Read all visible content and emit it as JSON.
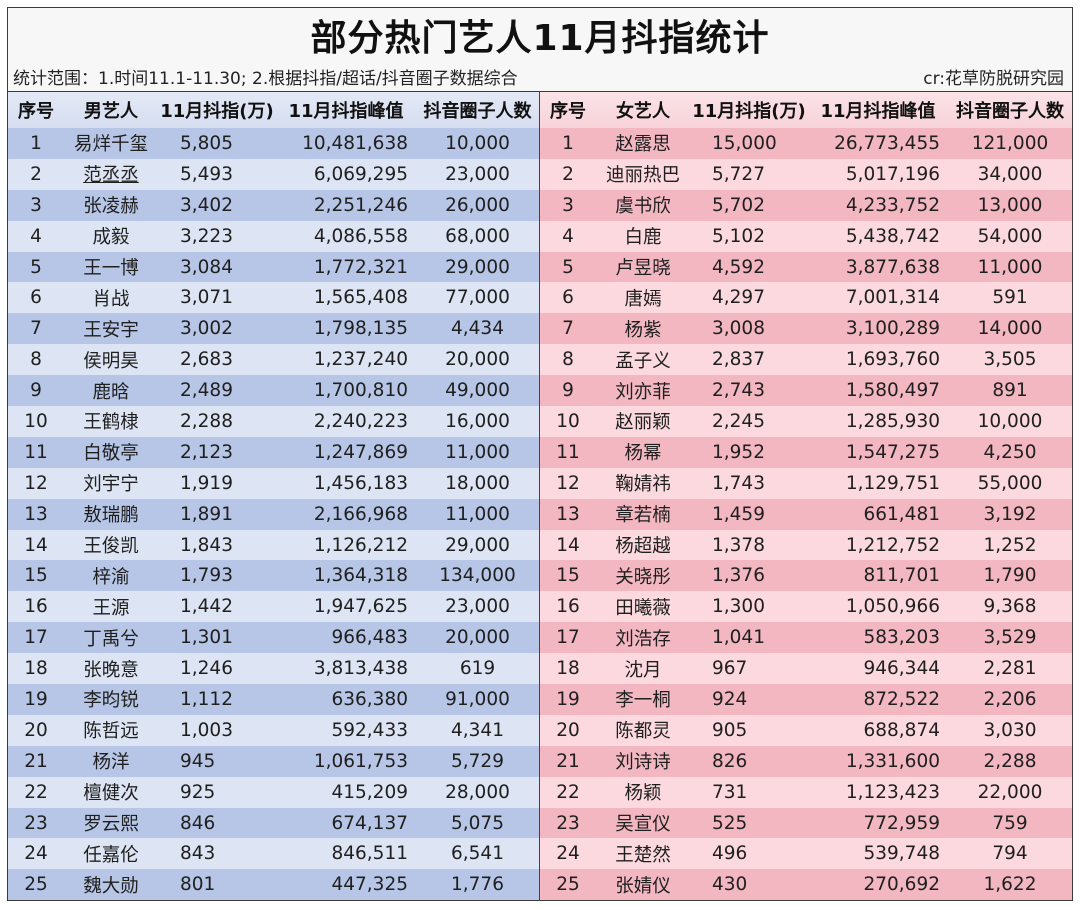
{
  "header": {
    "title": "部分热门艺人11月抖指统计",
    "subtitle": "统计范围：1.时间11.1-11.30; 2.根据抖指/超话/抖音圈子数据综合",
    "credit": "cr:花草防脱研究园"
  },
  "colors": {
    "male_row_dark": "#b7c6e6",
    "male_row_light": "#dde4f3",
    "female_row_dark": "#f2b7c1",
    "female_row_light": "#fbd9de",
    "border": "#3a3a3a"
  },
  "male_table": {
    "headers": [
      "序号",
      "男艺人",
      "11月抖指(万)",
      "11月抖指峰值",
      "抖音圈子人数"
    ],
    "rows": [
      [
        "1",
        "易烊千玺",
        "5,805",
        "10,481,638",
        "10,000"
      ],
      [
        "2",
        "范丞丞",
        "5,493",
        "6,069,295",
        "23,000"
      ],
      [
        "3",
        "张凌赫",
        "3,402",
        "2,251,246",
        "26,000"
      ],
      [
        "4",
        "成毅",
        "3,223",
        "4,086,558",
        "68,000"
      ],
      [
        "5",
        "王一博",
        "3,084",
        "1,772,321",
        "29,000"
      ],
      [
        "6",
        "肖战",
        "3,071",
        "1,565,408",
        "77,000"
      ],
      [
        "7",
        "王安宇",
        "3,002",
        "1,798,135",
        "4,434"
      ],
      [
        "8",
        "侯明昊",
        "2,683",
        "1,237,240",
        "20,000"
      ],
      [
        "9",
        "鹿晗",
        "2,489",
        "1,700,810",
        "49,000"
      ],
      [
        "10",
        "王鹤棣",
        "2,288",
        "2,240,223",
        "16,000"
      ],
      [
        "11",
        "白敬亭",
        "2,123",
        "1,247,869",
        "11,000"
      ],
      [
        "12",
        "刘宇宁",
        "1,919",
        "1,456,183",
        "18,000"
      ],
      [
        "13",
        "敖瑞鹏",
        "1,891",
        "2,166,968",
        "11,000"
      ],
      [
        "14",
        "王俊凯",
        "1,843",
        "1,126,212",
        "29,000"
      ],
      [
        "15",
        "梓渝",
        "1,793",
        "1,364,318",
        "134,000"
      ],
      [
        "16",
        "王源",
        "1,442",
        "1,947,625",
        "23,000"
      ],
      [
        "17",
        "丁禹兮",
        "1,301",
        "966,483",
        "20,000"
      ],
      [
        "18",
        "张晚意",
        "1,246",
        "3,813,438",
        "619"
      ],
      [
        "19",
        "李昀锐",
        "1,112",
        "636,380",
        "91,000"
      ],
      [
        "20",
        "陈哲远",
        "1,003",
        "592,433",
        "4,341"
      ],
      [
        "21",
        "杨洋",
        "945",
        "1,061,753",
        "5,729"
      ],
      [
        "22",
        "檀健次",
        "925",
        "415,209",
        "28,000"
      ],
      [
        "23",
        "罗云熙",
        "846",
        "674,137",
        "5,075"
      ],
      [
        "24",
        "任嘉伦",
        "843",
        "846,511",
        "6,541"
      ],
      [
        "25",
        "魏大勋",
        "801",
        "447,325",
        "1,776"
      ]
    ]
  },
  "female_table": {
    "headers": [
      "序号",
      "女艺人",
      "11月抖指(万)",
      "11月抖指峰值",
      "抖音圈子人数"
    ],
    "rows": [
      [
        "1",
        "赵露思",
        "15,000",
        "26,773,455",
        "121,000"
      ],
      [
        "2",
        "迪丽热巴",
        "5,727",
        "5,017,196",
        "34,000"
      ],
      [
        "3",
        "虞书欣",
        "5,702",
        "4,233,752",
        "13,000"
      ],
      [
        "4",
        "白鹿",
        "5,102",
        "5,438,742",
        "54,000"
      ],
      [
        "5",
        "卢昱晓",
        "4,592",
        "3,877,638",
        "11,000"
      ],
      [
        "6",
        "唐嫣",
        "4,297",
        "7,001,314",
        "591"
      ],
      [
        "7",
        "杨紫",
        "3,008",
        "3,100,289",
        "14,000"
      ],
      [
        "8",
        "孟子义",
        "2,837",
        "1,693,760",
        "3,505"
      ],
      [
        "9",
        "刘亦菲",
        "2,743",
        "1,580,497",
        "891"
      ],
      [
        "10",
        "赵丽颖",
        "2,245",
        "1,285,930",
        "10,000"
      ],
      [
        "11",
        "杨幂",
        "1,952",
        "1,547,275",
        "4,250"
      ],
      [
        "12",
        "鞠婧祎",
        "1,743",
        "1,129,751",
        "55,000"
      ],
      [
        "13",
        "章若楠",
        "1,459",
        "661,481",
        "3,192"
      ],
      [
        "14",
        "杨超越",
        "1,378",
        "1,212,752",
        "1,252"
      ],
      [
        "15",
        "关晓彤",
        "1,376",
        "811,701",
        "1,790"
      ],
      [
        "16",
        "田曦薇",
        "1,300",
        "1,050,966",
        "9,368"
      ],
      [
        "17",
        "刘浩存",
        "1,041",
        "583,203",
        "3,529"
      ],
      [
        "18",
        "沈月",
        "967",
        "946,344",
        "2,281"
      ],
      [
        "19",
        "李一桐",
        "924",
        "872,522",
        "2,206"
      ],
      [
        "20",
        "陈都灵",
        "905",
        "688,874",
        "3,030"
      ],
      [
        "21",
        "刘诗诗",
        "826",
        "1,331,600",
        "2,288"
      ],
      [
        "22",
        "杨颖",
        "731",
        "1,123,423",
        "22,000"
      ],
      [
        "23",
        "吴宣仪",
        "525",
        "772,959",
        "759"
      ],
      [
        "24",
        "王楚然",
        "496",
        "539,748",
        "794"
      ],
      [
        "25",
        "张婧仪",
        "430",
        "270,692",
        "1,622"
      ]
    ]
  }
}
